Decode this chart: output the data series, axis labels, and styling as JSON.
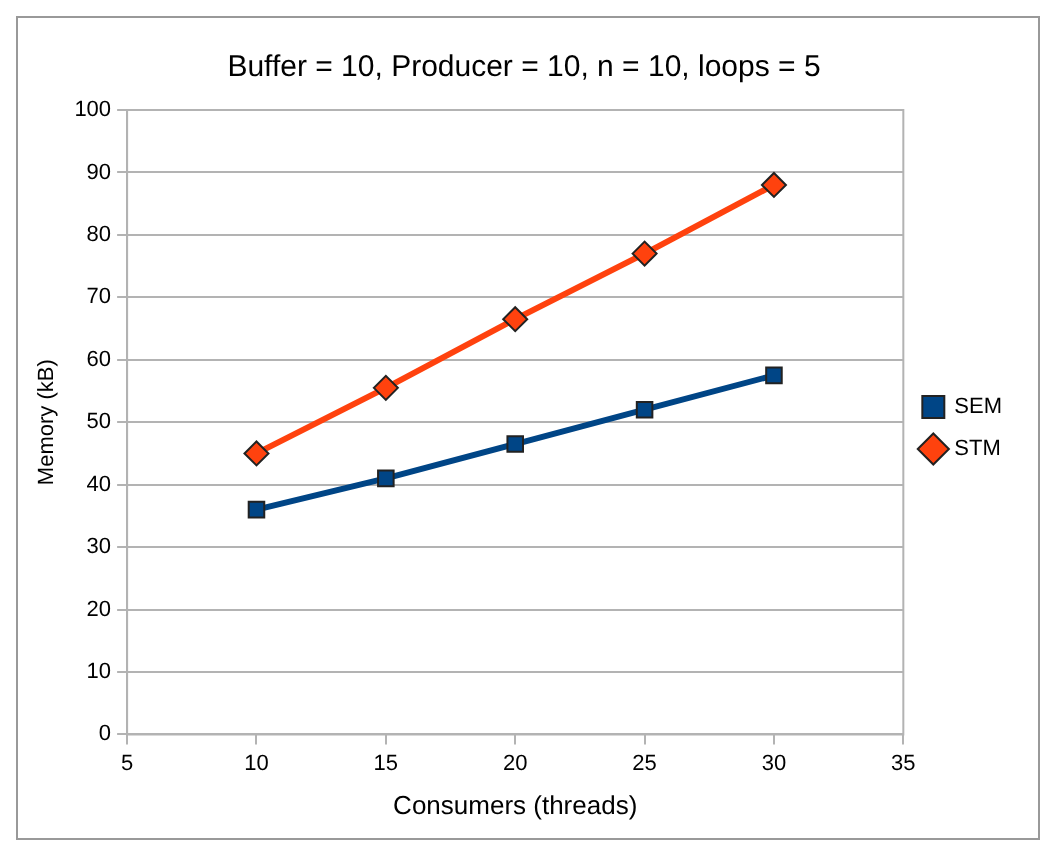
{
  "chart_data": {
    "type": "line",
    "title": "Buffer = 10, Producer = 10, n = 10, loops = 5",
    "xlabel": "Consumers (threads)",
    "ylabel": "Memory (kB)",
    "x": [
      10,
      15,
      20,
      25,
      30
    ],
    "series": [
      {
        "name": "SEM",
        "color": "#004586",
        "values": [
          36,
          41,
          46.5,
          52,
          57.5
        ],
        "marker": "square"
      },
      {
        "name": "STM",
        "color": "#ff420e",
        "values": [
          45,
          55.5,
          66.5,
          77,
          88
        ],
        "marker": "diamond"
      }
    ],
    "xlim": [
      5,
      35
    ],
    "xticks": [
      5,
      10,
      15,
      20,
      25,
      30,
      35
    ],
    "ylim": [
      0,
      100
    ],
    "yticks": [
      0,
      10,
      20,
      30,
      40,
      50,
      60,
      70,
      80,
      90,
      100
    ],
    "grid": "y",
    "legend": "right",
    "line_style": "solid"
  }
}
